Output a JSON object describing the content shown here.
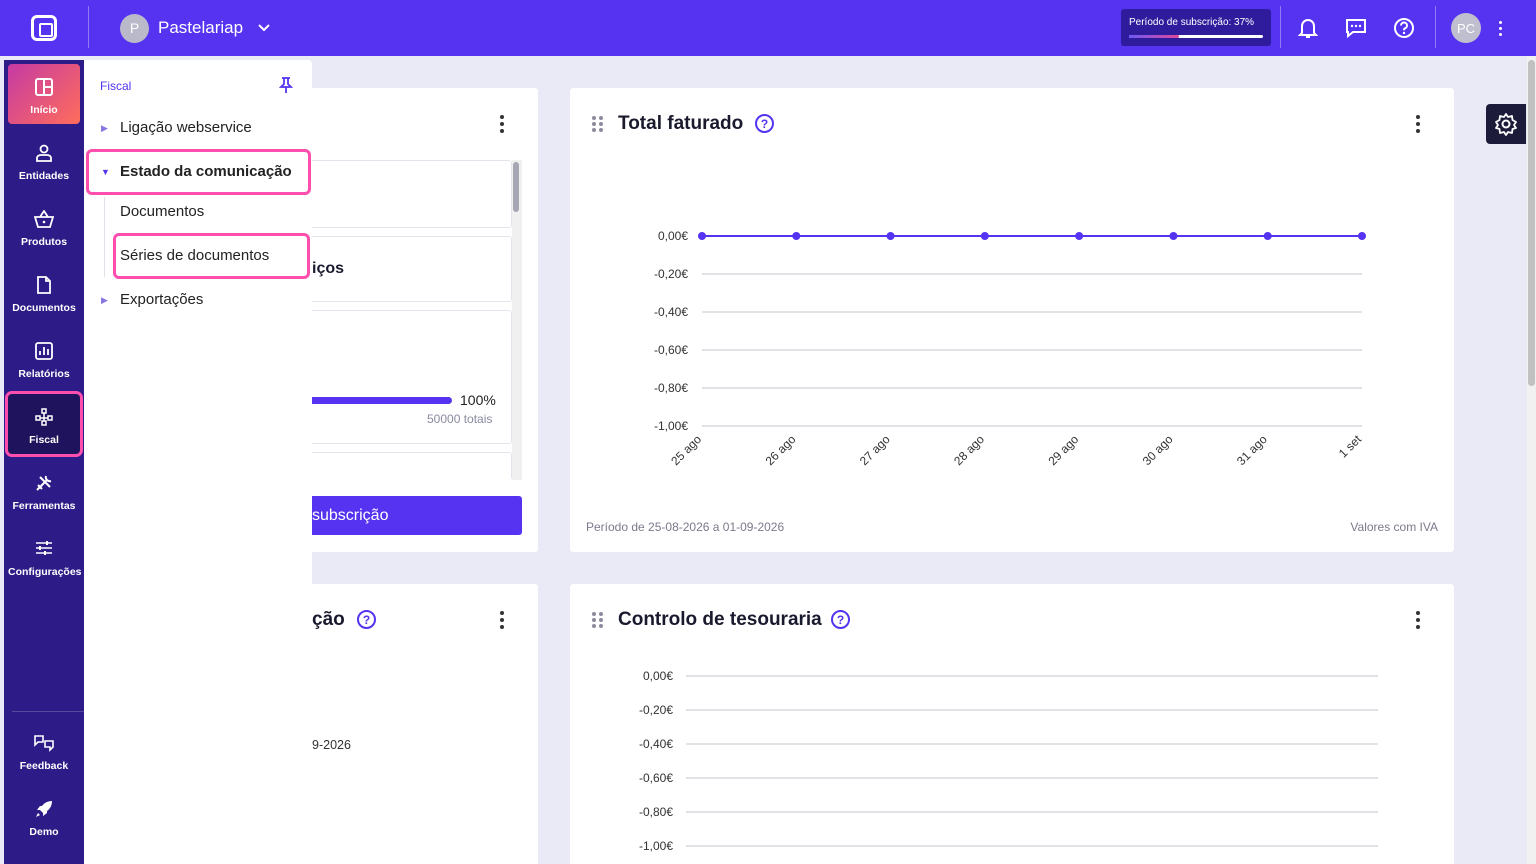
{
  "topbar": {
    "company_initial": "P",
    "company_name": "Pastelariap",
    "subscription_label": "Período de subscrição: 37%",
    "subscription_progress": 0.37,
    "user_initials": "PC",
    "icons": [
      "bell-icon",
      "chat-icon",
      "help-icon"
    ]
  },
  "leftnav": {
    "items": [
      {
        "label": "Início",
        "icon": "dashboard-icon"
      },
      {
        "label": "Entidades",
        "icon": "person-icon"
      },
      {
        "label": "Produtos",
        "icon": "basket-icon"
      },
      {
        "label": "Documentos",
        "icon": "document-icon"
      },
      {
        "label": "Relatórios",
        "icon": "report-icon"
      },
      {
        "label": "Fiscal",
        "icon": "fiscal-icon"
      },
      {
        "label": "Ferramentas",
        "icon": "tools-icon"
      },
      {
        "label": "Configurações",
        "icon": "sliders-icon"
      }
    ],
    "bottom": [
      {
        "label": "Feedback",
        "icon": "feedback-icon"
      },
      {
        "label": "Demo",
        "icon": "rocket-icon"
      }
    ],
    "accent_active": "#ff4fae"
  },
  "flyout": {
    "title": "Fiscal",
    "items": [
      {
        "label": "Ligação webservice",
        "expanded": false
      },
      {
        "label": "Estado da comunicação",
        "expanded": true
      },
      {
        "label": "Documentos",
        "sub": true
      },
      {
        "label": "Séries de documentos",
        "sub": true
      },
      {
        "label": "Exportações",
        "expanded": false
      }
    ]
  },
  "card_left": {
    "partial_title": "iços",
    "progress_pct": "100%",
    "progress_value": 1.0,
    "totals": "50000 totais",
    "button_label": "subscrição"
  },
  "card_bottom_left": {
    "partial_title": "ção",
    "partial_date": "9-2026"
  },
  "total_faturado": {
    "title": "Total faturado",
    "footer_left": "Período de 25-08-2026 a 01-09-2026",
    "footer_right": "Valores com IVA"
  },
  "tesouraria": {
    "title": "Controlo de tesouraria"
  },
  "chart_data": [
    {
      "type": "line",
      "title": "Total faturado",
      "categories": [
        "25 ago",
        "26 ago",
        "27 ago",
        "28 ago",
        "29 ago",
        "30 ago",
        "31 ago",
        "1 set"
      ],
      "series": [
        {
          "values": [
            0,
            0,
            0,
            0,
            0,
            0,
            0,
            0
          ]
        }
      ],
      "yticks": [
        "0,00€",
        "-0,20€",
        "-0,40€",
        "-0,60€",
        "-0,80€",
        "-1,00€"
      ],
      "ylim": [
        -1.0,
        0.0
      ],
      "grid": true,
      "color": "#5533f0"
    },
    {
      "type": "line",
      "title": "Controlo de tesouraria",
      "yticks": [
        "0,00€",
        "-0,20€",
        "-0,40€",
        "-0,60€",
        "-0,80€",
        "-1,00€"
      ],
      "ylim": [
        -1.0,
        0.0
      ],
      "grid": true
    }
  ]
}
